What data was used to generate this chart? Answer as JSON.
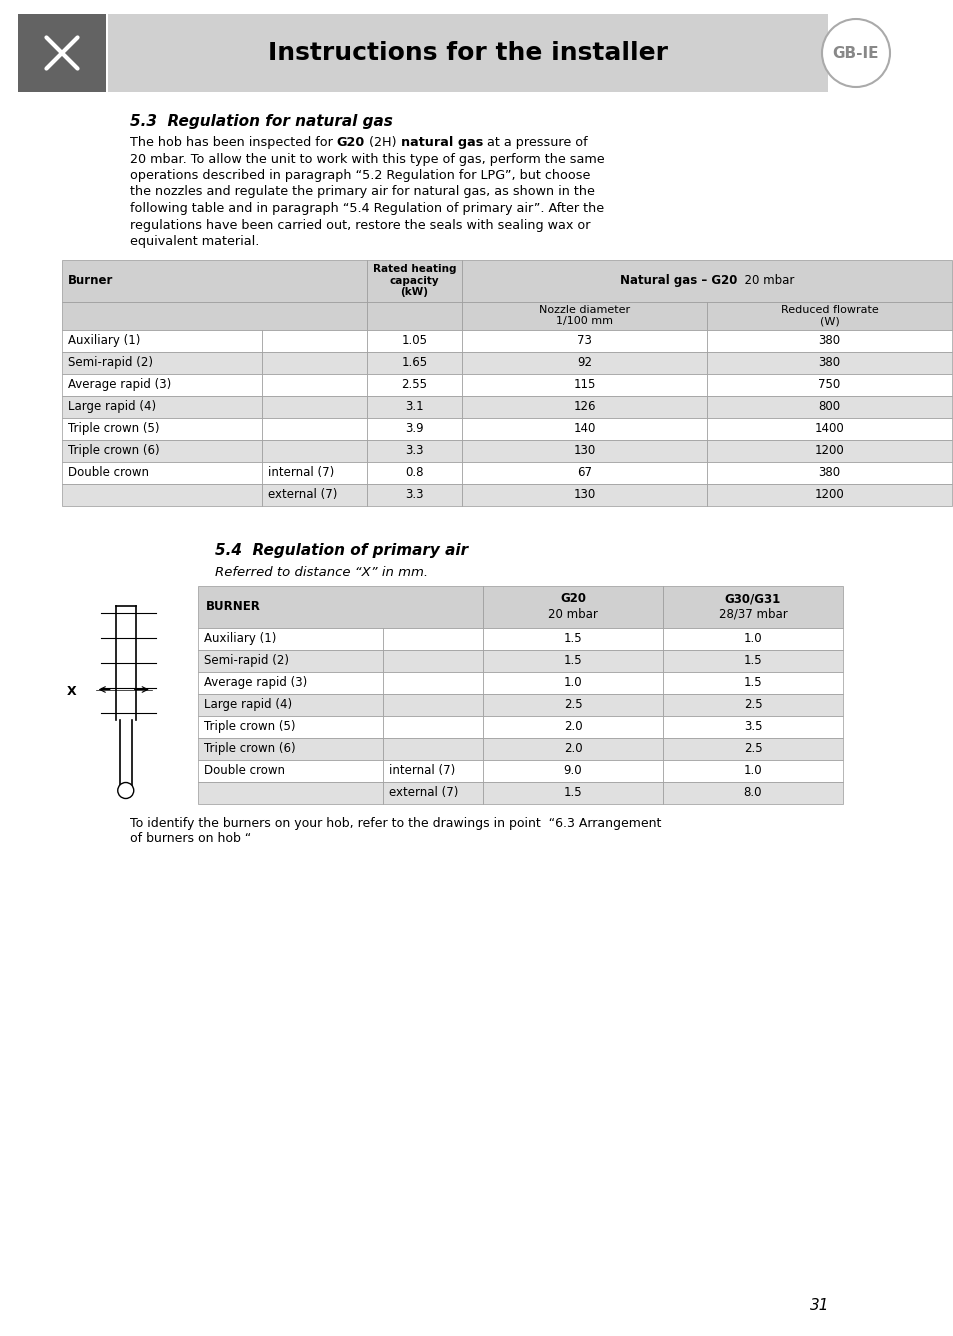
{
  "header_title": "Instructions for the installer",
  "section1_title": "5.3  Regulation for natural gas",
  "para_line1_parts": [
    [
      "The hob has been inspected for ",
      "normal"
    ],
    [
      "G20",
      "bold"
    ],
    [
      " (2H) ",
      "normal"
    ],
    [
      "natural gas",
      "bold"
    ],
    [
      " at a pressure of",
      "normal"
    ]
  ],
  "para_lines_normal": [
    "20 mbar. To allow the unit to work with this type of gas, perform the same",
    "operations described in paragraph “5.2 Regulation for LPG”, but choose",
    "the nozzles and regulate the primary air for natural gas, as shown in the",
    "following table and in paragraph “5.4 Regulation of primary air”. After the",
    "regulations have been carried out, restore the seals with sealing wax or",
    "equivalent material."
  ],
  "table1_rows": [
    [
      "Auxiliary (1)",
      "",
      "1.05",
      "73",
      "380",
      false
    ],
    [
      "Semi-rapid (2)",
      "",
      "1.65",
      "92",
      "380",
      true
    ],
    [
      "Average rapid (3)",
      "",
      "2.55",
      "115",
      "750",
      false
    ],
    [
      "Large rapid (4)",
      "",
      "3.1",
      "126",
      "800",
      true
    ],
    [
      "Triple crown (5)",
      "",
      "3.9",
      "140",
      "1400",
      false
    ],
    [
      "Triple crown (6)",
      "",
      "3.3",
      "130",
      "1200",
      true
    ],
    [
      "Double crown",
      "internal (7)",
      "0.8",
      "67",
      "380",
      false
    ],
    [
      "",
      "external (7)",
      "3.3",
      "130",
      "1200",
      true
    ]
  ],
  "section2_title": "5.4  Regulation of primary air",
  "section2_subtitle": "Referred to distance “X” in mm.",
  "table2_rows": [
    [
      "Auxiliary (1)",
      "",
      "1.5",
      "1.0",
      false
    ],
    [
      "Semi-rapid (2)",
      "",
      "1.5",
      "1.5",
      true
    ],
    [
      "Average rapid (3)",
      "",
      "1.0",
      "1.5",
      false
    ],
    [
      "Large rapid (4)",
      "",
      "2.5",
      "2.5",
      true
    ],
    [
      "Triple crown (5)",
      "",
      "2.0",
      "3.5",
      false
    ],
    [
      "Triple crown (6)",
      "",
      "2.0",
      "2.5",
      true
    ],
    [
      "Double crown",
      "internal (7)",
      "9.0",
      "1.0",
      false
    ],
    [
      "",
      "external (7)",
      "1.5",
      "8.0",
      true
    ]
  ],
  "footer_text1": "To identify the burners on your hob, refer to the drawings in point  “6.3 Arrangement",
  "footer_text2": "of burners on hob “",
  "page_number": "31",
  "bg_header": "#d0d0d0",
  "bg_shaded": "#e0e0e0",
  "bg_white": "#ffffff",
  "bg_icon": "#636363"
}
